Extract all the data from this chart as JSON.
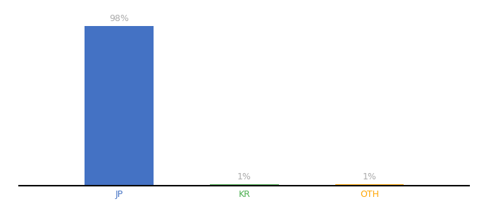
{
  "categories": [
    "JP",
    "KR",
    "OTH"
  ],
  "values": [
    98,
    1,
    1
  ],
  "bar_colors": [
    "#4472c4",
    "#4caf50",
    "#ffa500"
  ],
  "labels": [
    "98%",
    "1%",
    "1%"
  ],
  "label_color": "#aaaaaa",
  "ylim": [
    0,
    110
  ],
  "background_color": "#ffffff",
  "tick_label_colors": [
    "#4472c4",
    "#4caf50",
    "#ffa500"
  ],
  "bar_width": 0.55,
  "x_positions": [
    1,
    2,
    3
  ],
  "xlim": [
    0.2,
    3.8
  ]
}
